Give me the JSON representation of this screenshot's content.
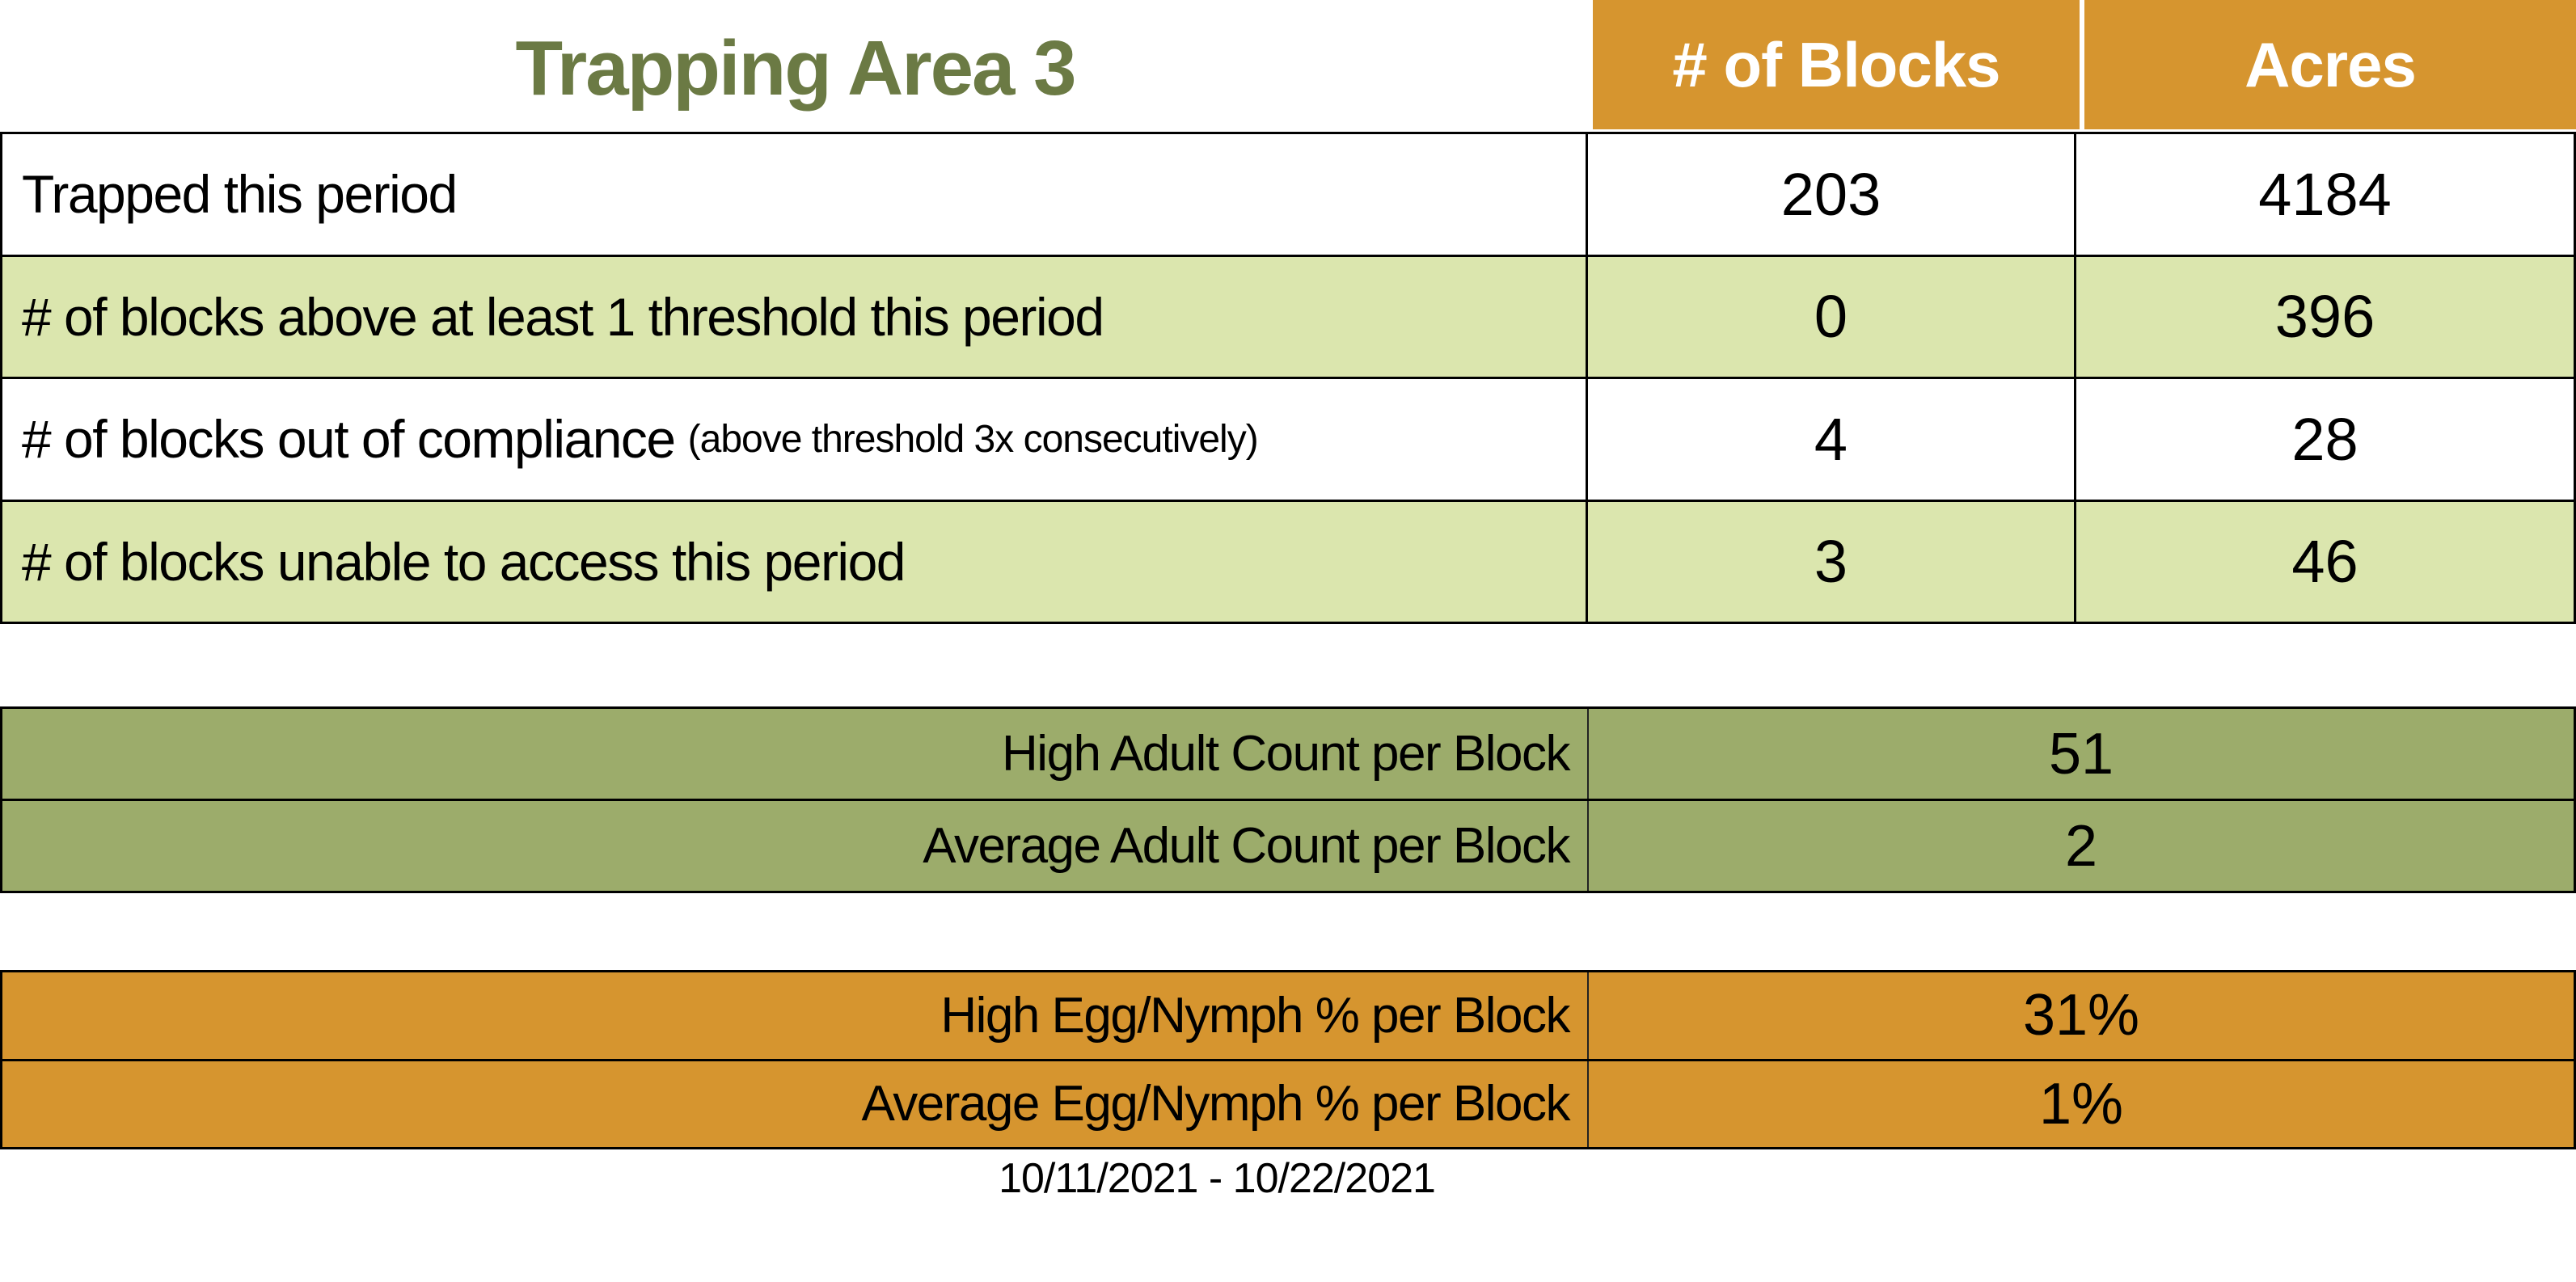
{
  "title": "Trapping Area 3",
  "date_range": "10/11/2021 - 10/22/2021",
  "colors": {
    "orange": "#D6952F",
    "light_green": "#DBE6AE",
    "olive": "#9CAC6B",
    "title_green": "#6B7A44"
  },
  "main_table": {
    "col_headers": [
      "# of Blocks",
      "Acres"
    ],
    "rows": [
      {
        "label": "Trapped this period",
        "note": "",
        "blocks": "203",
        "acres": "4184"
      },
      {
        "label": "# of blocks above at least 1 threshold this period",
        "note": "",
        "blocks": "0",
        "acres": "396"
      },
      {
        "label": "# of blocks out of compliance",
        "note": "(above threshold 3x consecutively)",
        "blocks": "4",
        "acres": "28"
      },
      {
        "label": "# of blocks unable to access this period",
        "note": "",
        "blocks": "3",
        "acres": "46"
      }
    ]
  },
  "adult_table": {
    "rows": [
      {
        "label": "High Adult Count per Block",
        "value": "51"
      },
      {
        "label": "Average Adult Count per Block",
        "value": "2"
      }
    ]
  },
  "egg_table": {
    "rows": [
      {
        "label": "High Egg/Nymph % per Block",
        "value": "31%"
      },
      {
        "label": "Average Egg/Nymph % per Block",
        "value": "1%"
      }
    ]
  }
}
